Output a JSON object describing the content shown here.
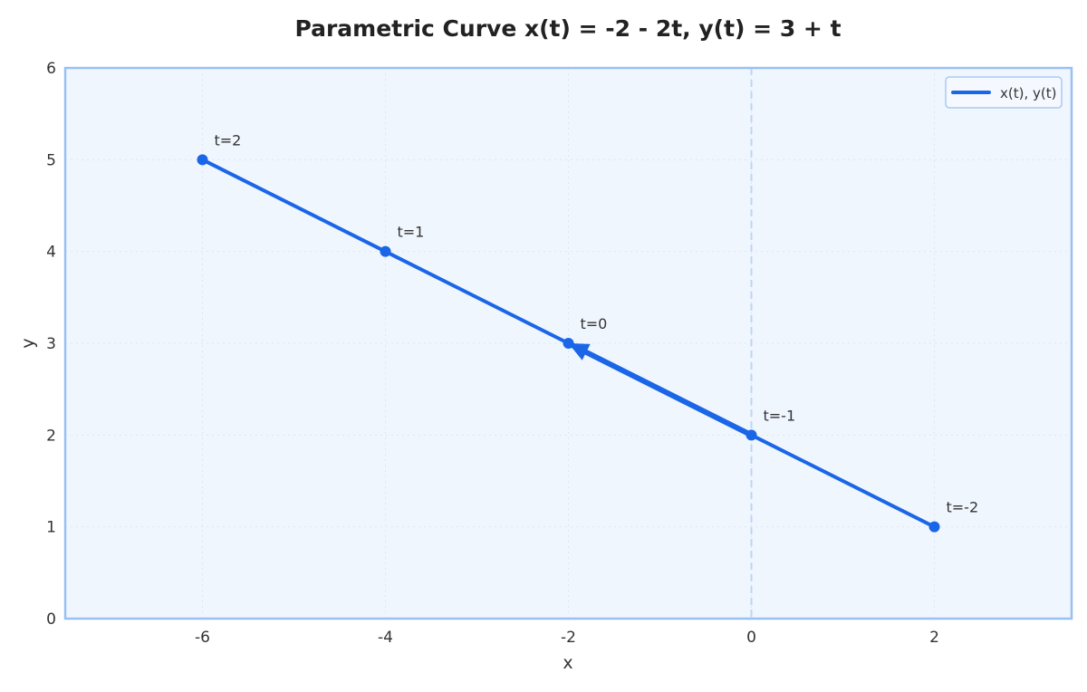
{
  "chart_data": {
    "type": "line",
    "title": "Parametric Curve x(t) = -2 - 2t, y(t) = 3 + t",
    "xlabel": "x",
    "ylabel": "y",
    "xlim": [
      -7.5,
      3.5
    ],
    "ylim": [
      0,
      6
    ],
    "xticks": [
      -6,
      -4,
      -2,
      0,
      2
    ],
    "xtick_labels": [
      "-6",
      "-4",
      "-2",
      "0",
      "2"
    ],
    "yticks": [
      0,
      1,
      2,
      3,
      4,
      5,
      6
    ],
    "ytick_labels": [
      "0",
      "1",
      "2",
      "3",
      "4",
      "5",
      "6"
    ],
    "grid": true,
    "legend_position": "upper right",
    "series": [
      {
        "name": "x(t), y(t)",
        "color": "#1a66e6",
        "x": [
          2,
          0,
          -2,
          -4,
          -6
        ],
        "y": [
          1,
          2,
          3,
          4,
          5
        ]
      }
    ],
    "points": [
      {
        "t": -2,
        "x": 2,
        "y": 1,
        "label": "t=-2"
      },
      {
        "t": -1,
        "x": 0,
        "y": 2,
        "label": "t=-1"
      },
      {
        "t": 0,
        "x": -2,
        "y": 3,
        "label": "t=0"
      },
      {
        "t": 1,
        "x": -4,
        "y": 4,
        "label": "t=1"
      },
      {
        "t": 2,
        "x": -6,
        "y": 5,
        "label": "t=2"
      }
    ],
    "annotations": [
      {
        "type": "arrow",
        "from": [
          0,
          2
        ],
        "to": [
          -2,
          3
        ],
        "note": "direction of increasing t"
      },
      {
        "type": "vline",
        "x": 0,
        "style": "dashed"
      }
    ]
  },
  "colors": {
    "line": "#1a66e6",
    "plot_bg": "#f0f6fe",
    "frame": "#99c0f3",
    "grid": "#dbe6f5",
    "vline": "#bcd6f7",
    "text": "#333333"
  }
}
